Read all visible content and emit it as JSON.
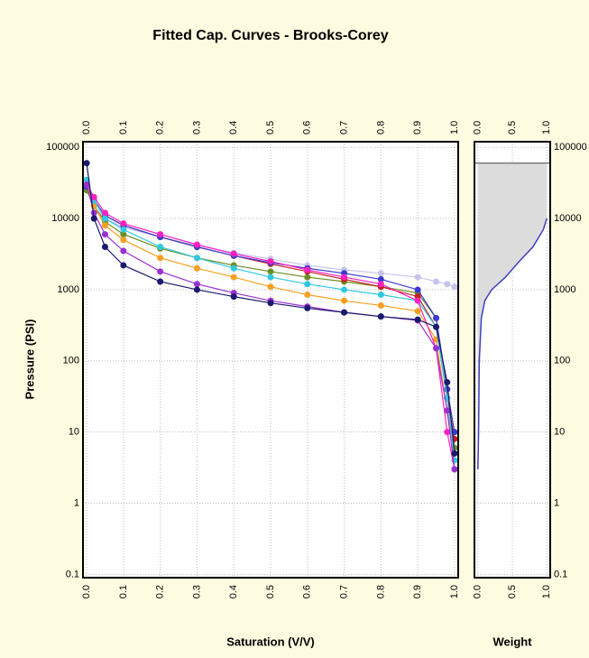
{
  "chart_data": [
    {
      "type": "scatter",
      "title": "Fitted Cap. Curves - Brooks-Corey",
      "x_label": "Saturation (V/V)",
      "y_label": "Pressure (PSI)",
      "log_y": true,
      "grid": true,
      "xlim": [
        -0.01,
        1.01
      ],
      "ylim": [
        0.09,
        120000
      ],
      "xticks": [
        {
          "value": 0,
          "label": "0.0"
        },
        0.1,
        0.2,
        0.3,
        0.4,
        0.5,
        0.6,
        0.7,
        0.8,
        0.9,
        {
          "value": 1,
          "label": "1.0"
        }
      ],
      "yticks": [
        100000,
        10000,
        1000,
        100,
        10,
        1,
        0.1
      ],
      "x": [
        0,
        0.02,
        0.05,
        0.1,
        0.2,
        0.3,
        0.4,
        0.5,
        0.6,
        0.7,
        0.8,
        0.9,
        0.95,
        0.98,
        1.0
      ],
      "series": [
        {
          "color": "#c4c4ec",
          "values": [
            25000,
            15000,
            10000,
            7500,
            5500,
            4200,
            3300,
            2700,
            2200,
            1900,
            1700,
            1500,
            1300,
            1200,
            1100
          ]
        },
        {
          "color": "#6b8e23",
          "values": [
            25000,
            15000,
            9000,
            6000,
            3800,
            2800,
            2200,
            1800,
            1500,
            1300,
            1100,
            900,
            400,
            40,
            6
          ]
        },
        {
          "color": "#c02020",
          "values": [
            30000,
            18000,
            11000,
            8000,
            5500,
            4000,
            3000,
            2300,
            1800,
            1400,
            1100,
            800,
            300,
            30,
            8
          ]
        },
        {
          "color": "#3a3ad0",
          "values": [
            28000,
            18000,
            11000,
            8000,
            5500,
            4000,
            3000,
            2400,
            2000,
            1700,
            1400,
            1000,
            400,
            40,
            10
          ]
        },
        {
          "color": "#f5a020",
          "values": [
            30000,
            15000,
            8000,
            5000,
            2800,
            2000,
            1500,
            1100,
            850,
            700,
            600,
            500,
            200,
            20,
            5
          ]
        },
        {
          "color": "#30c8e0",
          "values": [
            35000,
            18000,
            10000,
            7000,
            4000,
            2800,
            2000,
            1500,
            1200,
            1000,
            850,
            700,
            300,
            30,
            4
          ]
        },
        {
          "color": "#ff20c0",
          "values": [
            30000,
            20000,
            12000,
            8500,
            6000,
            4300,
            3200,
            2500,
            1900,
            1500,
            1200,
            700,
            150,
            10,
            3
          ]
        },
        {
          "color": "#9b30d0",
          "values": [
            30000,
            12000,
            6000,
            3500,
            1800,
            1200,
            900,
            700,
            580,
            480,
            420,
            370,
            150,
            20,
            3
          ]
        },
        {
          "color": "#1a1a6e",
          "values": [
            60000,
            10000,
            4000,
            2200,
            1300,
            1000,
            800,
            650,
            550,
            480,
            420,
            380,
            300,
            50,
            5
          ]
        }
      ]
    },
    {
      "type": "area",
      "x_label": "Weight",
      "log_y": true,
      "grid": true,
      "xlim": [
        -0.05,
        1.05
      ],
      "ylim": [
        0.09,
        120000
      ],
      "xticks": [
        {
          "value": 0,
          "label": "0.0"
        },
        0.5,
        {
          "value": 1,
          "label": "1.0"
        }
      ],
      "yticks": [
        100000,
        10000,
        1000,
        100,
        10,
        1,
        0.1
      ],
      "x": [
        0,
        0.01,
        0.02,
        0.05,
        0.1,
        0.2,
        0.4,
        0.6,
        0.8,
        0.95,
        1.0
      ],
      "values": [
        3,
        10,
        100,
        400,
        700,
        1000,
        1500,
        2500,
        4000,
        7000,
        10000
      ],
      "upper_limit": 60000,
      "color": "#4040c0",
      "fill": "#dcdcdc"
    }
  ]
}
